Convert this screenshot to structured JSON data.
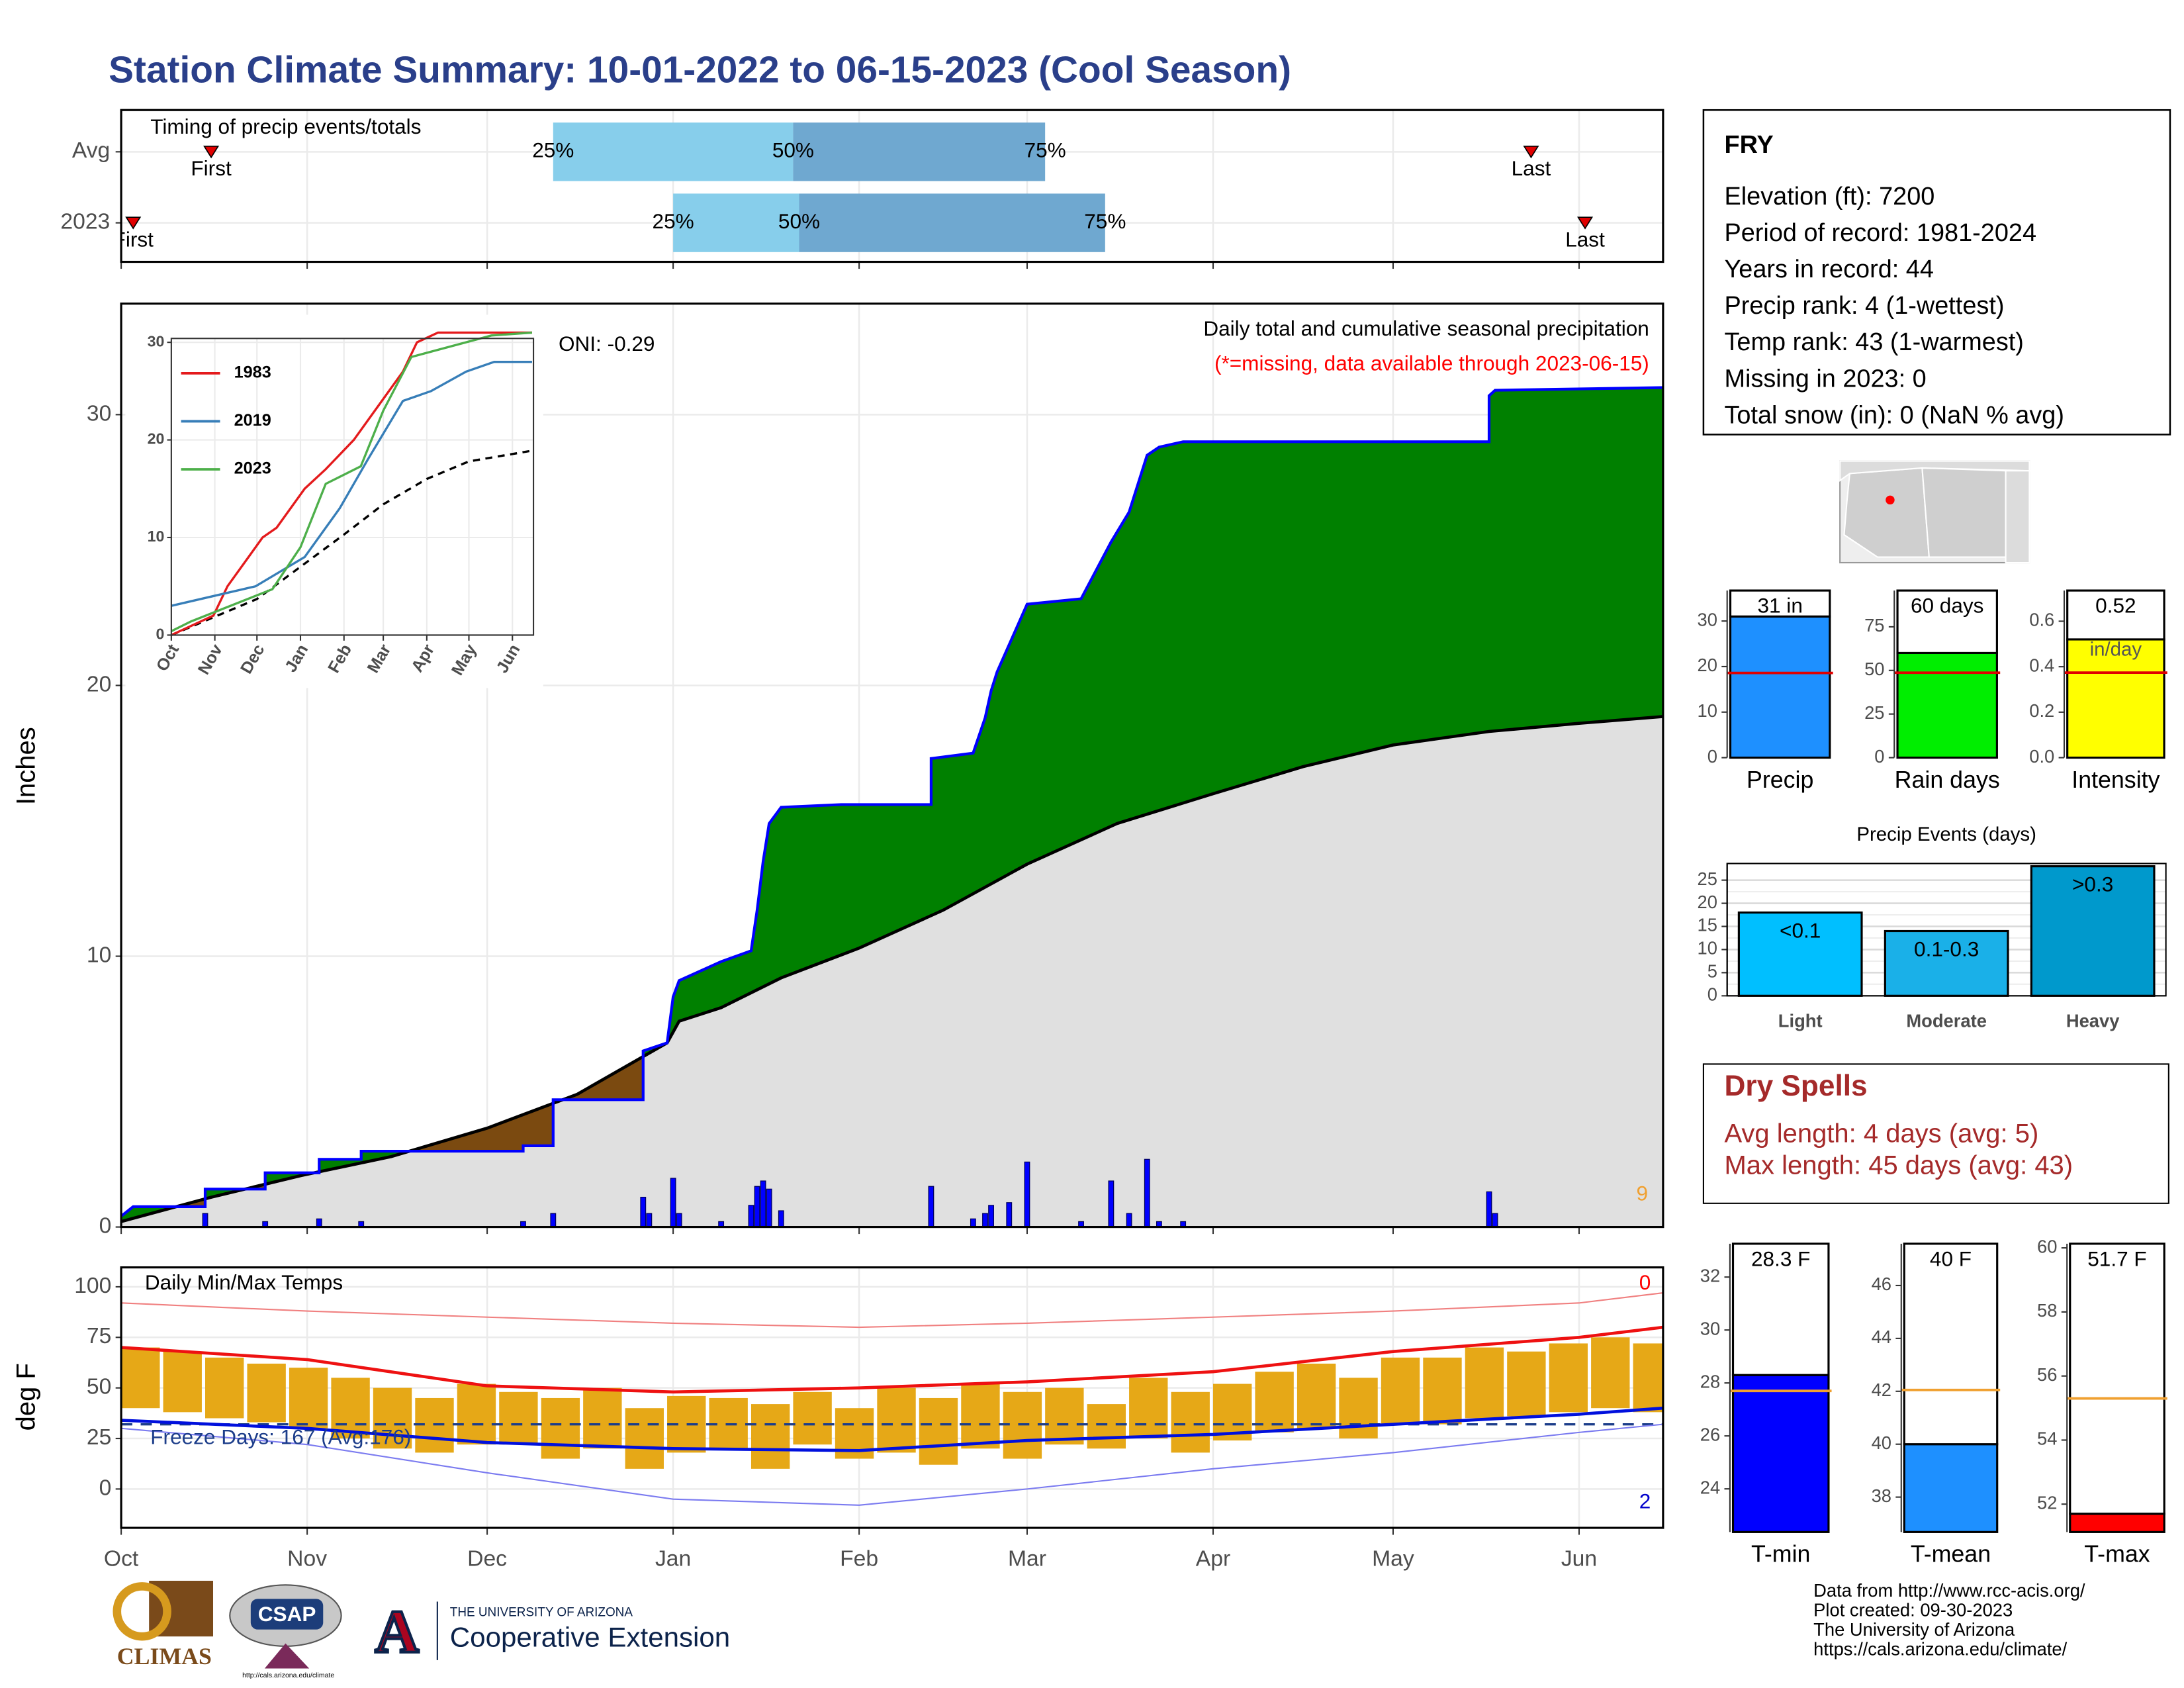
{
  "title": "Station Climate Summary: 10-01-2022 to 06-15-2023 (Cool Season)",
  "station": {
    "name": "FRY",
    "lines": [
      "Elevation (ft): 7200",
      "Period of record: 1981-2024",
      "Years in record: 44",
      "Precip rank: 4 (1-wettest)",
      "Temp rank: 43 (1-warmest)",
      "Missing in 2023: 0",
      "Total snow (in): 0 (NaN % avg)"
    ]
  },
  "dry_spells": {
    "title": "Dry Spells",
    "lines": [
      "Avg length: 4 days (avg: 5)",
      "Max length: 45 days (avg: 43)"
    ]
  },
  "credits": [
    "Data from http://www.rcc-acis.org/",
    "Plot created: 09-30-2023",
    "The University of Arizona",
    "https://cals.arizona.edu/climate/"
  ],
  "logos": {
    "climas": "CLIMAS",
    "csap": "CSAP",
    "csap_url": "http://cals.arizona.edu/climate",
    "ua": "THE UNIVERSITY OF ARIZONA",
    "extension": "Cooperative Extension"
  },
  "chart_data": [
    {
      "type": "timing",
      "title": "Timing of precip events/totals",
      "xlim": [
        0,
        257
      ],
      "xticks": [
        0,
        31,
        61,
        92,
        123,
        151,
        182,
        212,
        243
      ],
      "first_label": "First",
      "last_label": "Last",
      "quartile_labels": [
        "25%",
        "50%",
        "75%"
      ],
      "colors": [
        "#87ceeb",
        "#6fa8d0"
      ],
      "marker_color": "#e00000",
      "rows": [
        {
          "name": "Avg",
          "first": 15,
          "quartiles": [
            72,
            112,
            154
          ],
          "last": 235
        },
        {
          "name": "2023",
          "first": 2,
          "quartiles": [
            92,
            113,
            164
          ],
          "last": 244
        }
      ]
    },
    {
      "type": "cumulative",
      "title": "Daily total and cumulative seasonal precipitation",
      "subtitle": "(*=missing, data available through 2023-06-15)",
      "annotation": "ONI: -0.29",
      "corner_label": "9",
      "ylabel": "Inches",
      "xlim": [
        0,
        257
      ],
      "ylim": [
        0,
        34.1
      ],
      "xticks": [
        0,
        31,
        61,
        92,
        123,
        151,
        182,
        212,
        243
      ],
      "yticks": [
        0,
        10,
        20,
        30
      ],
      "grid": true,
      "above_color": "#008000",
      "below_color": "#7b4a10",
      "avg_fill": "#e0e0e0",
      "cumulative": {
        "color": "#0000ff",
        "x": [
          0,
          2,
          14,
          14,
          24,
          24,
          33,
          33,
          40,
          40,
          67,
          67,
          72,
          72,
          87,
          87,
          91,
          92,
          93,
          100,
          105,
          106,
          107,
          108,
          110,
          120,
          135,
          135,
          142,
          144,
          145,
          146,
          148,
          151,
          160,
          165,
          168,
          171,
          173,
          177,
          228,
          228,
          229,
          257
        ],
        "values": [
          0.4,
          0.75,
          0.75,
          1.4,
          1.4,
          2.0,
          2.0,
          2.5,
          2.5,
          2.8,
          2.8,
          3.0,
          3.0,
          4.7,
          4.7,
          6.5,
          6.8,
          8.5,
          9.1,
          9.8,
          10.2,
          11.7,
          13.5,
          14.9,
          15.5,
          15.6,
          15.6,
          17.3,
          17.5,
          18.8,
          19.8,
          20.5,
          21.5,
          23.0,
          23.2,
          25.3,
          26.4,
          28.5,
          28.8,
          29.0,
          29.0,
          30.7,
          30.9,
          31.0
        ]
      },
      "average": {
        "color": "#000000",
        "x": [
          0,
          15,
          30,
          45,
          61,
          76,
          91,
          93,
          100,
          110,
          123,
          137,
          151,
          166,
          182,
          197,
          212,
          228,
          243,
          257
        ],
        "values": [
          0.2,
          1.1,
          1.9,
          2.6,
          3.65,
          4.9,
          6.8,
          7.6,
          8.1,
          9.2,
          10.3,
          11.7,
          13.4,
          14.9,
          16.0,
          17.0,
          17.8,
          18.3,
          18.6,
          18.85
        ]
      },
      "daily": {
        "color": "#0000ff",
        "x": [
          14,
          24,
          33,
          40,
          67,
          72,
          87,
          88,
          92,
          93,
          100,
          105,
          106,
          107,
          108,
          110,
          135,
          142,
          144,
          145,
          148,
          151,
          160,
          165,
          168,
          171,
          173,
          177,
          228,
          229
        ],
        "values": [
          0.5,
          0.2,
          0.3,
          0.2,
          0.2,
          0.5,
          1.1,
          0.5,
          1.8,
          0.5,
          0.2,
          0.8,
          1.5,
          1.7,
          1.4,
          0.6,
          1.5,
          0.3,
          0.5,
          0.8,
          0.9,
          2.4,
          0.2,
          1.7,
          0.5,
          2.5,
          0.2,
          0.2,
          1.3,
          0.5
        ]
      }
    },
    {
      "type": "line",
      "xlim": [
        0,
        258
      ],
      "ylim": [
        0,
        30.4
      ],
      "yticks": [
        0,
        10,
        20,
        30
      ],
      "xticks": [
        {
          "value": 0,
          "label": "Oct"
        },
        {
          "value": 31,
          "label": "Nov"
        },
        {
          "value": 61,
          "label": "Dec"
        },
        {
          "value": 92,
          "label": "Jan"
        },
        {
          "value": 123,
          "label": "Feb"
        },
        {
          "value": 151,
          "label": "Mar"
        },
        {
          "value": 182,
          "label": "Apr"
        },
        {
          "value": 212,
          "label": "May"
        },
        {
          "value": 243,
          "label": "Jun"
        }
      ],
      "series": [
        {
          "name": "1983",
          "color": "#e41a1c",
          "x": [
            0,
            30,
            40,
            55,
            65,
            75,
            80,
            85,
            95,
            110,
            130,
            150,
            165,
            175,
            190,
            257
          ],
          "values": [
            0,
            2,
            5,
            8,
            10,
            11,
            12,
            13,
            15,
            17,
            20,
            24,
            27,
            30,
            31,
            31
          ]
        },
        {
          "name": "2019",
          "color": "#377eb8",
          "x": [
            0,
            30,
            60,
            95,
            120,
            140,
            165,
            185,
            210,
            230,
            245,
            257
          ],
          "values": [
            3,
            4,
            5,
            8,
            13,
            18,
            24,
            25,
            27,
            28,
            28,
            28
          ]
        },
        {
          "name": "2023",
          "color": "#4daf4a",
          "x": [
            0,
            14,
            72,
            92,
            110,
            135,
            151,
            171,
            228,
            257
          ],
          "values": [
            0.4,
            1.4,
            4.7,
            9,
            15.5,
            17.3,
            23,
            28.5,
            30.7,
            31
          ]
        }
      ],
      "average": {
        "color": "#000000",
        "x": [
          0,
          61,
          92,
          123,
          151,
          182,
          212,
          257
        ],
        "values": [
          0,
          3.7,
          7,
          10.3,
          13.4,
          16,
          17.8,
          18.9
        ]
      }
    },
    {
      "type": "temps",
      "title": "Daily Min/Max Temps",
      "annotation": "Freeze Days: 167 (Avg:176)",
      "freeze": 32,
      "high_count": "0",
      "low_count": "2",
      "ylabel": "deg F",
      "xlim": [
        0,
        257
      ],
      "ylim": [
        -19.2,
        109.6
      ],
      "yticks": [
        0,
        25,
        50,
        75,
        100
      ],
      "xticks": [
        {
          "value": 0,
          "label": "Oct"
        },
        {
          "value": 31,
          "label": "Nov"
        },
        {
          "value": 61,
          "label": "Dec"
        },
        {
          "value": 92,
          "label": "Jan"
        },
        {
          "value": 123,
          "label": "Feb"
        },
        {
          "value": 151,
          "label": "Mar"
        },
        {
          "value": 182,
          "label": "Apr"
        },
        {
          "value": 212,
          "label": "May"
        },
        {
          "value": 243,
          "label": "Jun"
        }
      ],
      "daily": {
        "color": "#e6a817",
        "x": [
          0,
          7,
          14,
          21,
          28,
          35,
          42,
          49,
          56,
          63,
          70,
          77,
          84,
          91,
          98,
          105,
          112,
          119,
          126,
          133,
          140,
          147,
          154,
          161,
          168,
          175,
          182,
          189,
          196,
          203,
          210,
          217,
          224,
          231,
          238,
          245,
          252
        ],
        "tmax": [
          70,
          68,
          65,
          62,
          60,
          55,
          50,
          45,
          52,
          48,
          45,
          50,
          40,
          46,
          45,
          42,
          48,
          40,
          50,
          45,
          52,
          48,
          50,
          42,
          55,
          48,
          52,
          58,
          62,
          55,
          65,
          65,
          70,
          68,
          72,
          75,
          72
        ],
        "tmin": [
          40,
          38,
          35,
          33,
          30,
          25,
          20,
          18,
          22,
          22,
          15,
          20,
          10,
          18,
          20,
          10,
          22,
          15,
          18,
          12,
          20,
          15,
          22,
          20,
          25,
          18,
          24,
          28,
          30,
          25,
          32,
          32,
          35,
          36,
          38,
          40,
          38
        ]
      },
      "avg_max": {
        "color": "#ee1111",
        "x": [
          0,
          31,
          61,
          92,
          123,
          151,
          182,
          212,
          243,
          257
        ],
        "values": [
          70,
          64,
          51,
          48,
          50,
          53,
          58,
          68,
          75,
          80
        ]
      },
      "avg_min": {
        "color": "#0010dd",
        "x": [
          0,
          31,
          61,
          92,
          123,
          151,
          182,
          212,
          243,
          257
        ],
        "values": [
          34,
          30,
          23,
          20,
          19,
          24,
          27,
          32,
          37,
          40
        ]
      },
      "record_high": {
        "color": "#f08080",
        "x": [
          0,
          31,
          61,
          92,
          123,
          151,
          182,
          212,
          243,
          257
        ],
        "values": [
          92,
          88,
          85,
          82,
          80,
          82,
          85,
          88,
          92,
          97
        ]
      },
      "record_low": {
        "color": "#7b7bf0",
        "x": [
          0,
          31,
          61,
          92,
          123,
          151,
          182,
          212,
          243,
          257
        ],
        "values": [
          30,
          22,
          8,
          -5,
          -8,
          0,
          10,
          18,
          28,
          32
        ]
      }
    },
    {
      "type": "bar",
      "categories": [
        "Precip"
      ],
      "values": [
        31
      ],
      "value_labels": [
        "31 in"
      ],
      "average": 18.6,
      "avg_color": "#e00000",
      "color": "#1e90ff",
      "ylim": [
        0,
        36.7
      ],
      "yticks": [
        0,
        10,
        20,
        30
      ]
    },
    {
      "type": "bar",
      "categories": [
        "Rain days"
      ],
      "values": [
        60
      ],
      "value_labels": [
        "60 days"
      ],
      "average": 48.7,
      "avg_color": "#e00000",
      "color": "#00ee00",
      "ylim": [
        0,
        95.8
      ],
      "yticks": [
        0,
        25,
        50,
        75
      ]
    },
    {
      "type": "bar",
      "categories": [
        "Intensity"
      ],
      "values": [
        0.52
      ],
      "unit": "in/day",
      "average": 0.374,
      "avg_color": "#e00000",
      "color": "#ffff00",
      "ylim": [
        0,
        0.735
      ],
      "yticks": [
        {
          "value": 0,
          "label": "0.0"
        },
        0.2,
        0.4,
        0.6
      ]
    },
    {
      "type": "bar",
      "title": "Precip Events (days)",
      "categories": [
        "Light",
        "Moderate",
        "Heavy"
      ],
      "values": [
        18,
        14,
        28
      ],
      "thresholds": [
        "<0.1",
        "0.1-0.3",
        ">0.3"
      ],
      "colors": [
        "#00bfff",
        "#1ab0e8",
        "#0099cc"
      ],
      "ylim": [
        0,
        28.6
      ],
      "yticks": [
        0,
        5,
        10,
        15,
        20,
        25
      ],
      "grid": true
    },
    {
      "type": "bar",
      "categories": [
        "T-min"
      ],
      "values": [
        28.3
      ],
      "value_labels": [
        "28.3 F"
      ],
      "average": 27.7,
      "avg_color": "#f0a030",
      "color": "#0000ff",
      "ylim": [
        22.37,
        33.26
      ],
      "yticks": [
        24,
        26,
        28,
        30,
        32
      ]
    },
    {
      "type": "bar",
      "categories": [
        "T-mean"
      ],
      "values": [
        40
      ],
      "value_labels": [
        "40 F"
      ],
      "average": 42.05,
      "avg_color": "#f0a030",
      "color": "#1e90ff",
      "ylim": [
        36.68,
        47.58
      ],
      "yticks": [
        38,
        40,
        42,
        44,
        46
      ]
    },
    {
      "type": "bar",
      "categories": [
        "T-max"
      ],
      "values": [
        51.7
      ],
      "value_labels": [
        "51.7 F"
      ],
      "average": 55.3,
      "avg_color": "#f0a030",
      "color": "#ff0000",
      "ylim": [
        51.13,
        60.13
      ],
      "yticks": [
        52,
        54,
        56,
        58,
        60
      ]
    }
  ]
}
